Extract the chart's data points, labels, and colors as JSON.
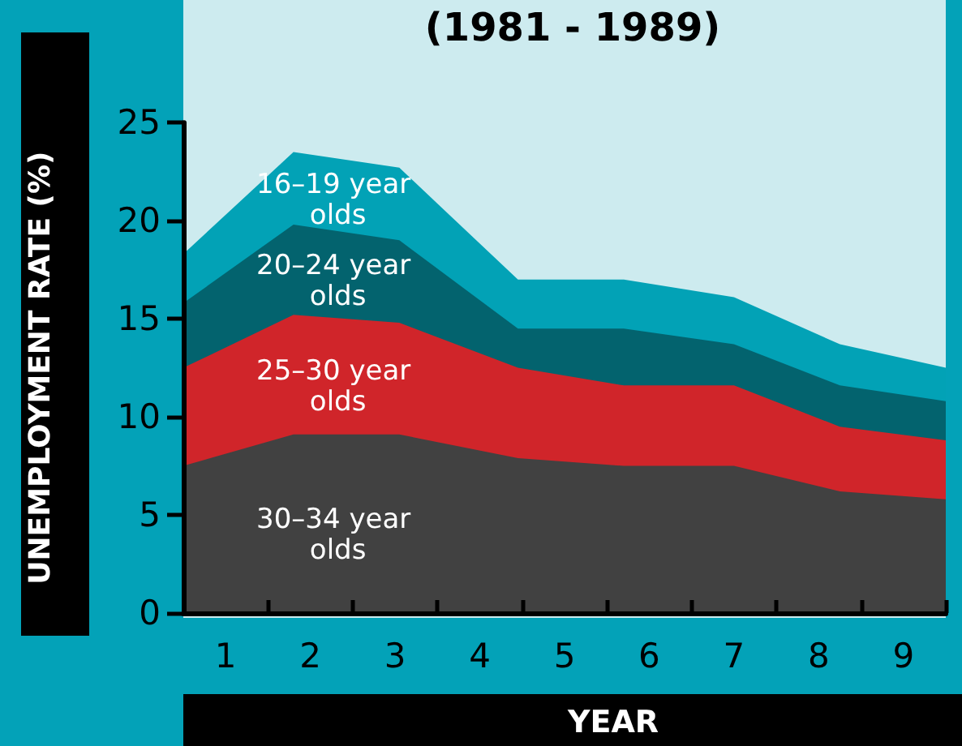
{
  "chart_data": {
    "type": "area",
    "title": "(1981 - 1989)",
    "xlabel": "YEAR",
    "ylabel": "UNEMPLOYMENT RATE (%)",
    "stacked": true,
    "x": [
      0.5,
      1.8,
      3.05,
      4.45,
      5.7,
      7,
      8.25,
      9.5
    ],
    "series": [
      {
        "name": "30–34 year olds",
        "color": "#414141",
        "values": [
          7.5,
          9.1,
          9.1,
          7.9,
          7.5,
          7.5,
          6.2,
          5.8
        ]
      },
      {
        "name": "25–30 year olds",
        "color": "#d0252a",
        "values": [
          5.0,
          6.1,
          5.7,
          4.6,
          4.1,
          4.1,
          3.3,
          3.0
        ]
      },
      {
        "name": "20–24 year olds",
        "color": "#03636e",
        "values": [
          3.3,
          4.6,
          4.2,
          2.0,
          2.9,
          2.1,
          2.1,
          2.0
        ]
      },
      {
        "name": "16–19 year olds",
        "color": "#02a2b6",
        "values": [
          2.5,
          3.7,
          3.7,
          2.5,
          2.5,
          2.4,
          2.1,
          1.7
        ]
      }
    ],
    "xlim": [
      0.5,
      9.5
    ],
    "xticks": [
      {
        "value": 0.5,
        "label": null
      },
      1,
      {
        "value": 1.5,
        "label": null
      },
      2,
      {
        "value": 2.5,
        "label": null
      },
      3,
      {
        "value": 3.5,
        "label": null
      },
      4,
      {
        "value": 4.5,
        "label": null
      },
      5,
      {
        "value": 5.5,
        "label": null
      },
      6,
      {
        "value": 6.5,
        "label": null
      },
      7,
      {
        "value": 7.5,
        "label": null
      },
      8,
      {
        "value": 8.5,
        "label": null
      },
      9,
      {
        "value": 9.5,
        "label": null
      }
    ],
    "ylim": [
      0,
      25
    ],
    "yticks": [
      0,
      5,
      10,
      15,
      20,
      25
    ],
    "grid": false,
    "legend": false,
    "marker": "none"
  }
}
